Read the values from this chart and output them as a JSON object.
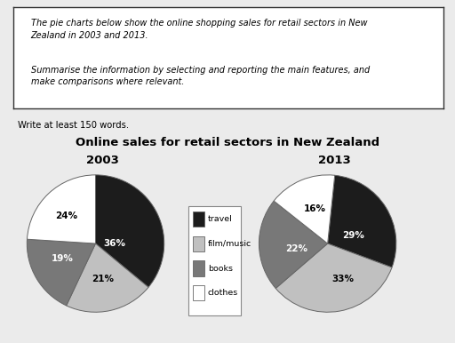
{
  "title": "Online sales for retail sectors in New Zealand",
  "subtitle_2003": "2003",
  "subtitle_2013": "2013",
  "prompt_line1": "The pie charts below show the online shopping sales for retail sectors in New\nZealand in 2003 and 2013.",
  "prompt_line2": "Summarise the information by selecting and reporting the main features, and\nmake comparisons where relevant.",
  "write_note": "Write at least 150 words.",
  "categories": [
    "travel",
    "film/music",
    "books",
    "clothes"
  ],
  "colors": [
    "#1c1c1c",
    "#c0c0c0",
    "#787878",
    "#ffffff"
  ],
  "edge_color": "#666666",
  "data_2003": [
    36,
    21,
    19,
    24
  ],
  "data_2013": [
    29,
    33,
    22,
    16
  ],
  "labels_2003": [
    "36%",
    "21%",
    "19%",
    "24%"
  ],
  "labels_2013": [
    "29%",
    "33%",
    "22%",
    "16%"
  ],
  "label_colors_2003": [
    "white",
    "black",
    "white",
    "black"
  ],
  "label_colors_2013": [
    "white",
    "black",
    "white",
    "black"
  ],
  "startangle_2003": 90,
  "startangle_2013": 84,
  "background_color": "#ebebeb"
}
